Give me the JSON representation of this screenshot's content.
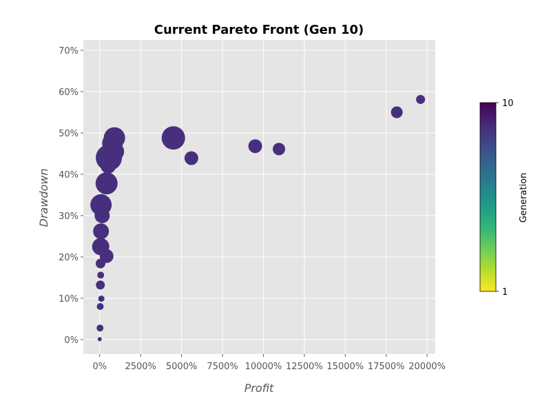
{
  "chart_data": {
    "type": "scatter",
    "title": "Current Pareto Front (Gen 10)",
    "xlabel": "Profit",
    "ylabel": "Drawdown",
    "x_unit": "%",
    "y_unit": "%",
    "xlim": [
      -1000,
      20500
    ],
    "ylim": [
      -3.5,
      72.5
    ],
    "xticks": [
      0,
      2500,
      5000,
      7500,
      10000,
      12500,
      15000,
      17500,
      20000
    ],
    "yticks": [
      0,
      10,
      20,
      30,
      40,
      50,
      60,
      70
    ],
    "xtick_labels": [
      "0%",
      "2500%",
      "5000%",
      "7500%",
      "10000%",
      "12500%",
      "15000%",
      "17500%",
      "20000%"
    ],
    "ytick_labels": [
      "0%",
      "10%",
      "20%",
      "30%",
      "40%",
      "50%",
      "60%",
      "70%"
    ],
    "grid": true,
    "style": "ggplot",
    "background": "#e5e5e5",
    "point_color": "#472f7d",
    "colorbar": {
      "label": "Generation",
      "min_label": "1",
      "max_label": "10",
      "colormap": "viridis",
      "stops": [
        "#fde725",
        "#b5de2b",
        "#6ece58",
        "#35b779",
        "#1f9e89",
        "#26828e",
        "#31688e",
        "#3e4989",
        "#482878",
        "#440154"
      ]
    },
    "points": [
      {
        "x": 0,
        "y": 0.1,
        "size": 3
      },
      {
        "x": 20,
        "y": 2.8,
        "size": 5
      },
      {
        "x": 30,
        "y": 8.0,
        "size": 5
      },
      {
        "x": 100,
        "y": 9.9,
        "size": 4.5
      },
      {
        "x": 40,
        "y": 13.2,
        "size": 6.5
      },
      {
        "x": 60,
        "y": 15.6,
        "size": 5
      },
      {
        "x": 50,
        "y": 18.4,
        "size": 7
      },
      {
        "x": 420,
        "y": 20.2,
        "size": 10
      },
      {
        "x": 60,
        "y": 22.5,
        "size": 12.5
      },
      {
        "x": 80,
        "y": 26.2,
        "size": 11.5
      },
      {
        "x": 150,
        "y": 30.0,
        "size": 11
      },
      {
        "x": 80,
        "y": 32.6,
        "size": 15.5
      },
      {
        "x": 420,
        "y": 37.8,
        "size": 16
      },
      {
        "x": 520,
        "y": 42.0,
        "size": 11
      },
      {
        "x": 560,
        "y": 44.0,
        "size": 19
      },
      {
        "x": 700,
        "y": 44.5,
        "size": 13
      },
      {
        "x": 900,
        "y": 45.5,
        "size": 14
      },
      {
        "x": 780,
        "y": 47.5,
        "size": 15
      },
      {
        "x": 900,
        "y": 48.8,
        "size": 15.5
      },
      {
        "x": 4500,
        "y": 48.8,
        "size": 17
      },
      {
        "x": 5600,
        "y": 43.9,
        "size": 10
      },
      {
        "x": 9500,
        "y": 46.8,
        "size": 10
      },
      {
        "x": 10950,
        "y": 46.1,
        "size": 9
      },
      {
        "x": 18150,
        "y": 55.0,
        "size": 8.5
      },
      {
        "x": 19600,
        "y": 58.1,
        "size": 6.5
      }
    ]
  }
}
